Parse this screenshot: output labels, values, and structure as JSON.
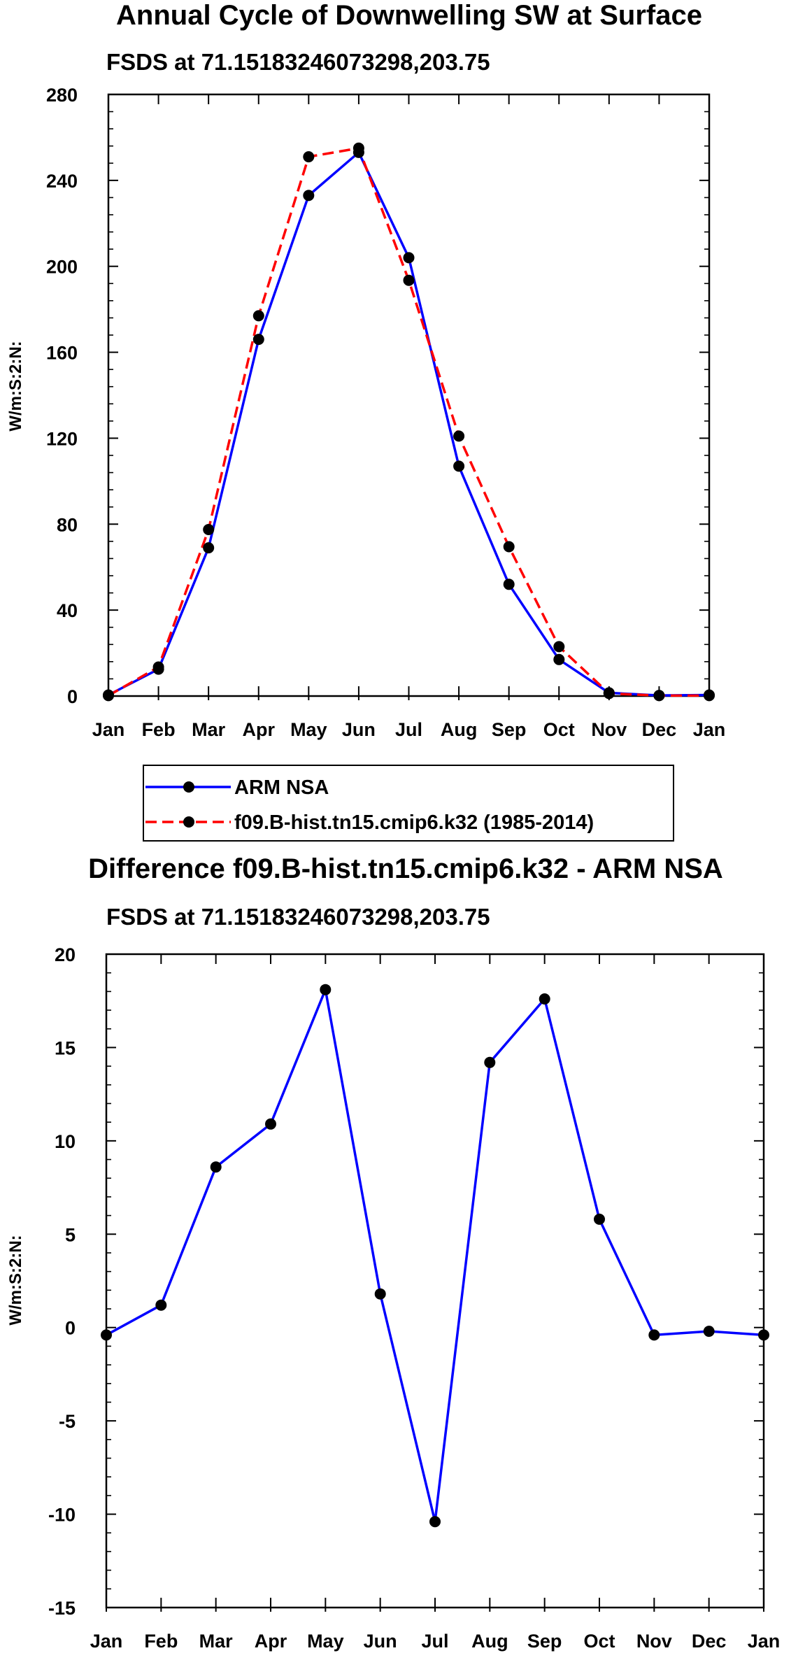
{
  "colors": {
    "series_obs": "#0000ff",
    "series_model": "#ff0000",
    "marker": "#000000",
    "axis": "#000000",
    "background": "#ffffff"
  },
  "chart_data": [
    {
      "type": "line",
      "title": "Annual Cycle of Downwelling SW at Surface",
      "subtitle": "FSDS at 71.15183246073298,203.75",
      "xlabel": "",
      "ylabel": "W/m:S:2:N:",
      "categories": [
        "Jan",
        "Feb",
        "Mar",
        "Apr",
        "May",
        "Jun",
        "Jul",
        "Aug",
        "Sep",
        "Oct",
        "Nov",
        "Dec",
        "Jan"
      ],
      "ylim": [
        0,
        280
      ],
      "yticks": [
        0,
        40,
        80,
        120,
        160,
        200,
        240,
        280
      ],
      "series": [
        {
          "name": "ARM NSA",
          "color": "#0000ff",
          "dash": "solid",
          "values": [
            0.5,
            12.5,
            69,
            166,
            233,
            253,
            204,
            107,
            52,
            17,
            1.5,
            0.3,
            0.5
          ]
        },
        {
          "name": "f09.B-hist.tn15.cmip6.k32 (1985-2014)",
          "color": "#ff0000",
          "dash": "dashed",
          "values": [
            0.2,
            13.5,
            77.5,
            177,
            251,
            255,
            193.5,
            121,
            69.5,
            23,
            1.2,
            0.2,
            0.2
          ]
        }
      ],
      "legend": "bottom"
    },
    {
      "type": "line",
      "title": "Difference f09.B-hist.tn15.cmip6.k32 - ARM NSA",
      "subtitle": "FSDS at 71.15183246073298,203.75",
      "xlabel": "",
      "ylabel": "W/m:S:2:N:",
      "categories": [
        "Jan",
        "Feb",
        "Mar",
        "Apr",
        "May",
        "Jun",
        "Jul",
        "Aug",
        "Sep",
        "Oct",
        "Nov",
        "Dec",
        "Jan"
      ],
      "ylim": [
        -15,
        20
      ],
      "yticks": [
        -15,
        -10,
        -5,
        0,
        5,
        10,
        15,
        20
      ],
      "series": [
        {
          "name": "Difference",
          "color": "#0000ff",
          "dash": "solid",
          "values": [
            -0.4,
            1.2,
            8.6,
            10.9,
            18.1,
            1.8,
            -10.4,
            14.2,
            17.6,
            5.8,
            -0.4,
            -0.2,
            -0.4
          ]
        }
      ]
    }
  ]
}
